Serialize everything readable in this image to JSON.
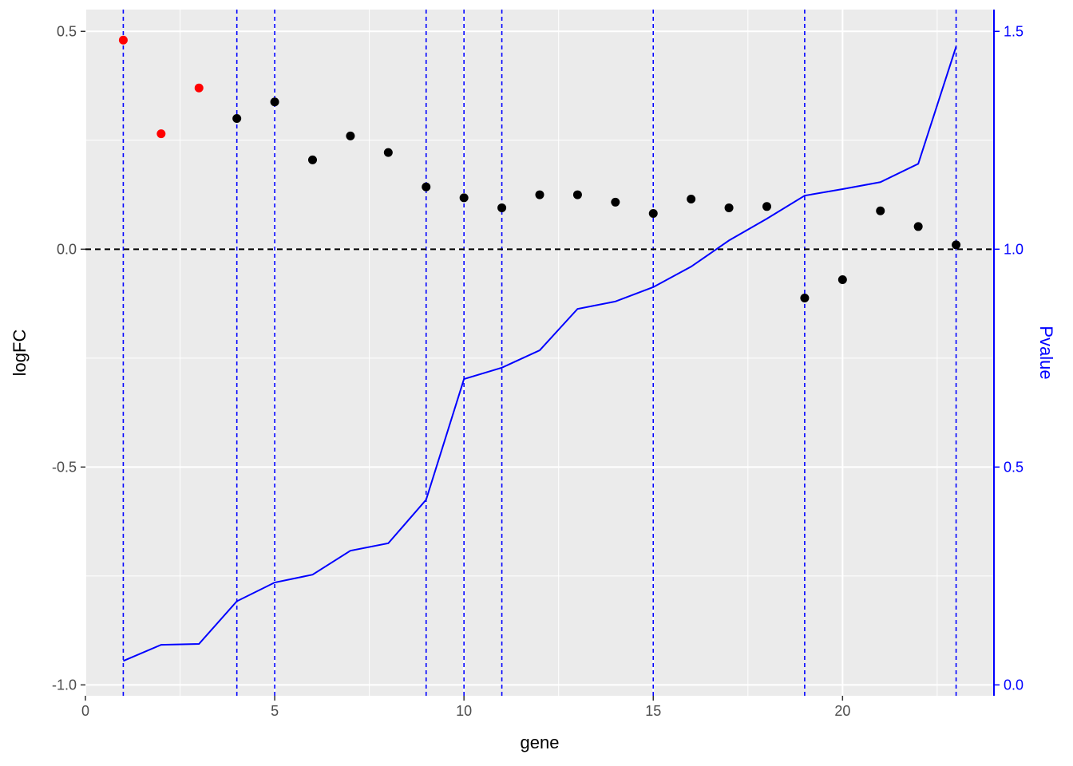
{
  "chart_data": {
    "type": "scatter",
    "title": "",
    "xlabel": "gene",
    "ylabel": "logFC",
    "ylabel_right": "Pvalue",
    "xlim": [
      0,
      24
    ],
    "ylim": [
      -1.0,
      0.5
    ],
    "ylim_right": [
      0.0,
      1.5
    ],
    "x_ticks": [
      0,
      5,
      10,
      15,
      20
    ],
    "y_ticks": [
      0.5,
      0.0,
      -0.5,
      -1.0
    ],
    "y_tick_labels": [
      "0.5",
      "0.0",
      "-0.5",
      "-1.0"
    ],
    "y_right_ticks": [
      1.5,
      1.0,
      0.5,
      0.0
    ],
    "y_right_tick_labels": [
      "1.5",
      "1.0",
      "0.5",
      "0.0"
    ],
    "grid": true,
    "background": "#ebebeb",
    "reference_line_y": 0.0,
    "vertical_lines_x": [
      1,
      4,
      5,
      9,
      10,
      11,
      15,
      19,
      23
    ],
    "colors": {
      "highlight": "#ff0000",
      "point": "#000000",
      "pvalue": "#0000ff",
      "vline": "#0000ff",
      "refline": "#000000"
    },
    "series": [
      {
        "kind": "points",
        "x": [
          1,
          2,
          3,
          4,
          5,
          6,
          7,
          8,
          9,
          10,
          11,
          12,
          13,
          14,
          15,
          16,
          17,
          18,
          19,
          20,
          21,
          22,
          23
        ],
        "y": [
          0.48,
          0.265,
          0.37,
          0.3,
          0.338,
          0.205,
          0.26,
          0.222,
          0.143,
          0.118,
          0.095,
          0.125,
          0.125,
          0.108,
          0.082,
          0.115,
          0.095,
          0.098,
          -0.112,
          -0.07,
          0.088,
          0.052,
          0.01
        ],
        "highlight": [
          true,
          true,
          true,
          false,
          false,
          false,
          false,
          false,
          false,
          false,
          false,
          false,
          false,
          false,
          false,
          false,
          false,
          false,
          false,
          false,
          false,
          false,
          false
        ]
      },
      {
        "kind": "line",
        "axis": "right",
        "x": [
          1,
          2,
          3,
          4,
          5,
          6,
          7,
          8,
          9,
          10,
          11,
          12,
          13,
          14,
          15,
          16,
          17,
          18,
          19,
          20,
          21,
          22,
          23
        ],
        "y": [
          0.055,
          0.092,
          0.094,
          0.192,
          0.235,
          0.253,
          0.308,
          0.325,
          0.425,
          0.702,
          0.728,
          0.768,
          0.863,
          0.88,
          0.913,
          0.96,
          1.02,
          1.07,
          1.123,
          1.138,
          1.154,
          1.196,
          1.465
        ]
      }
    ]
  }
}
